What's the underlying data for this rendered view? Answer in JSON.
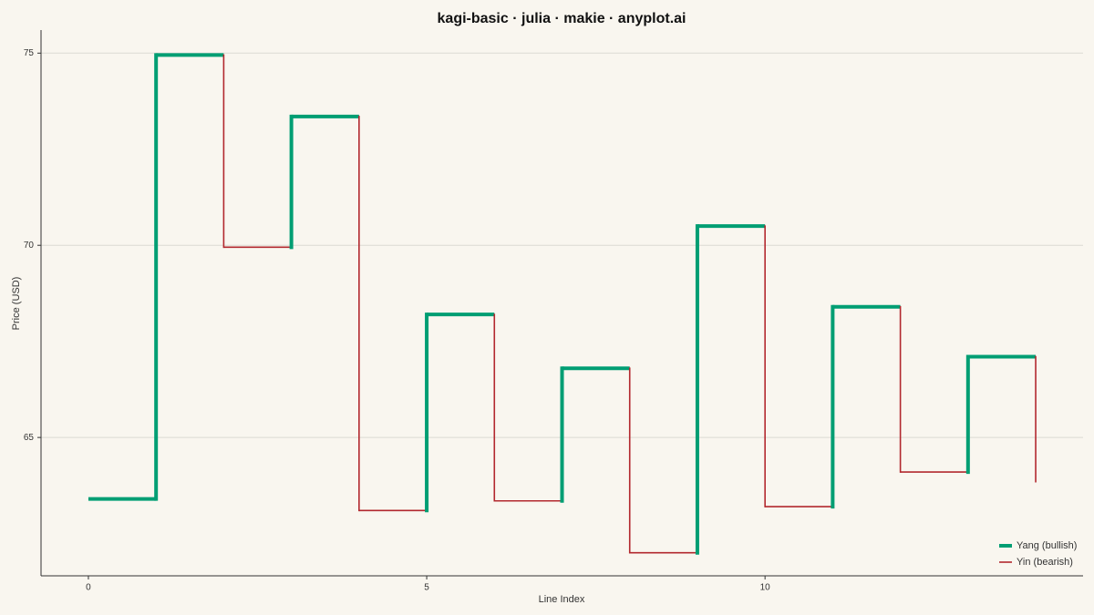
{
  "chart_data": {
    "type": "kagi",
    "title": "kagi-basic · julia · makie · anyplot.ai",
    "x_label": "Line Index",
    "y_label": "Price (USD)",
    "x": [
      0,
      1,
      2,
      3,
      4,
      5,
      6,
      7,
      8,
      9,
      10,
      11,
      12,
      13,
      14
    ],
    "values": [
      63.4,
      74.95,
      69.95,
      73.35,
      63.1,
      68.2,
      63.35,
      66.8,
      62.0,
      70.5,
      63.2,
      68.4,
      64.1,
      67.1,
      63.85
    ],
    "yang": {
      "name": "Yang (bullish)",
      "color": "#009e73"
    },
    "yin": {
      "name": "Yin (bearish)",
      "color": "#b2282e"
    },
    "xlim": [
      -0.7,
      14.7
    ],
    "ylim": [
      61.4,
      75.6
    ],
    "xticks": [
      0,
      5,
      10
    ],
    "yticks": [
      65,
      70,
      75
    ],
    "grid": true,
    "legend": "bottom-right"
  }
}
